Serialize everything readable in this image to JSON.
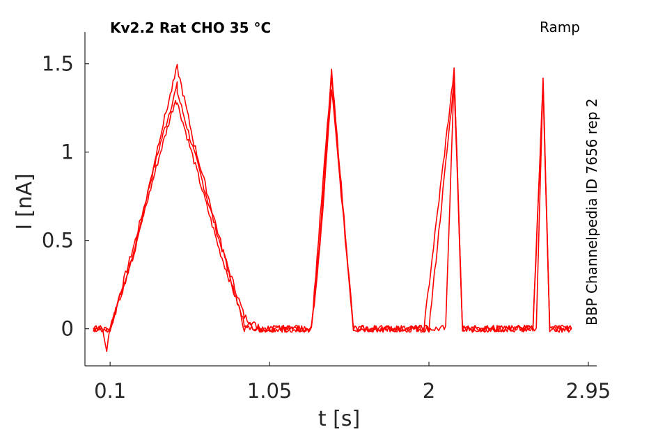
{
  "header": {
    "title": "Kv2.2  Rat  CHO  35 °C",
    "mode": "Ramp",
    "side_label": "BBP Channelpedia ID 7656 rep 2"
  },
  "colors": {
    "trace": "#ff0000",
    "axis": "#262626"
  },
  "chart_data": {
    "type": "line",
    "xlabel": "t [s]",
    "ylabel": "I [nA]",
    "xlim": [
      -0.05,
      3.0
    ],
    "ylim": [
      -0.21,
      1.68
    ],
    "xticks": [
      0.1,
      1.05,
      2,
      2.95
    ],
    "xtick_labels": [
      "0.1",
      "1.05",
      "2",
      "2.95"
    ],
    "yticks": [
      0,
      0.5,
      1,
      1.5
    ],
    "ytick_labels": [
      "0",
      "0.5",
      "1",
      "1.5"
    ],
    "grid": false,
    "series": [
      {
        "x": [
          0.0,
          0.05,
          0.08,
          0.1,
          0.15,
          0.25,
          0.4,
          0.5,
          0.5,
          0.6,
          0.75,
          0.9,
          0.99,
          1.0,
          1.1,
          1.2,
          1.3,
          1.35,
          1.42,
          1.55,
          1.62,
          1.65,
          1.7,
          1.8,
          1.9,
          1.97,
          2.0,
          2.1,
          2.15,
          2.2,
          2.25,
          2.3,
          2.4,
          2.5,
          2.58,
          2.62,
          2.64,
          2.68,
          2.72,
          2.85
        ],
        "y": [
          0.0,
          0.0,
          -0.12,
          0.0,
          0.17,
          0.5,
          1.05,
          1.38,
          1.34,
          1.0,
          0.5,
          0.07,
          0.0,
          0.0,
          0.0,
          0.0,
          0.0,
          0.5,
          1.42,
          0.0,
          0.0,
          0.0,
          0.0,
          0.0,
          0.0,
          0.0,
          0.0,
          0.0,
          1.45,
          0.0,
          0.0,
          0.0,
          0.0,
          0.0,
          0.0,
          0.0,
          0.0,
          1.42,
          0.0,
          0.0
        ]
      },
      {
        "x": [
          0.0,
          0.1,
          0.25,
          0.4,
          0.49,
          0.5,
          0.6,
          0.75,
          0.9,
          1.0,
          1.3,
          1.35,
          1.42,
          1.55,
          1.97,
          2.0,
          2.15,
          2.2,
          2.58,
          2.62,
          2.68,
          2.72,
          2.85
        ],
        "y": [
          0.0,
          0.0,
          0.47,
          1.0,
          1.3,
          1.28,
          0.95,
          0.45,
          0.03,
          0.0,
          0.0,
          0.45,
          1.36,
          0.0,
          0.0,
          0.0,
          1.4,
          0.0,
          0.0,
          0.0,
          1.38,
          0.0,
          0.0
        ]
      },
      {
        "x": [
          0.0,
          0.1,
          0.25,
          0.4,
          0.5,
          0.6,
          0.75,
          0.9,
          1.0,
          1.3,
          1.42,
          1.55,
          1.97,
          2.15,
          2.2,
          2.62,
          2.68,
          2.72,
          2.85
        ],
        "y": [
          0.0,
          0.0,
          0.45,
          1.1,
          1.48,
          1.05,
          0.52,
          0.0,
          0.0,
          0.0,
          1.45,
          0.0,
          0.0,
          1.46,
          0.0,
          0.0,
          1.42,
          0.0,
          0.0
        ]
      }
    ]
  }
}
